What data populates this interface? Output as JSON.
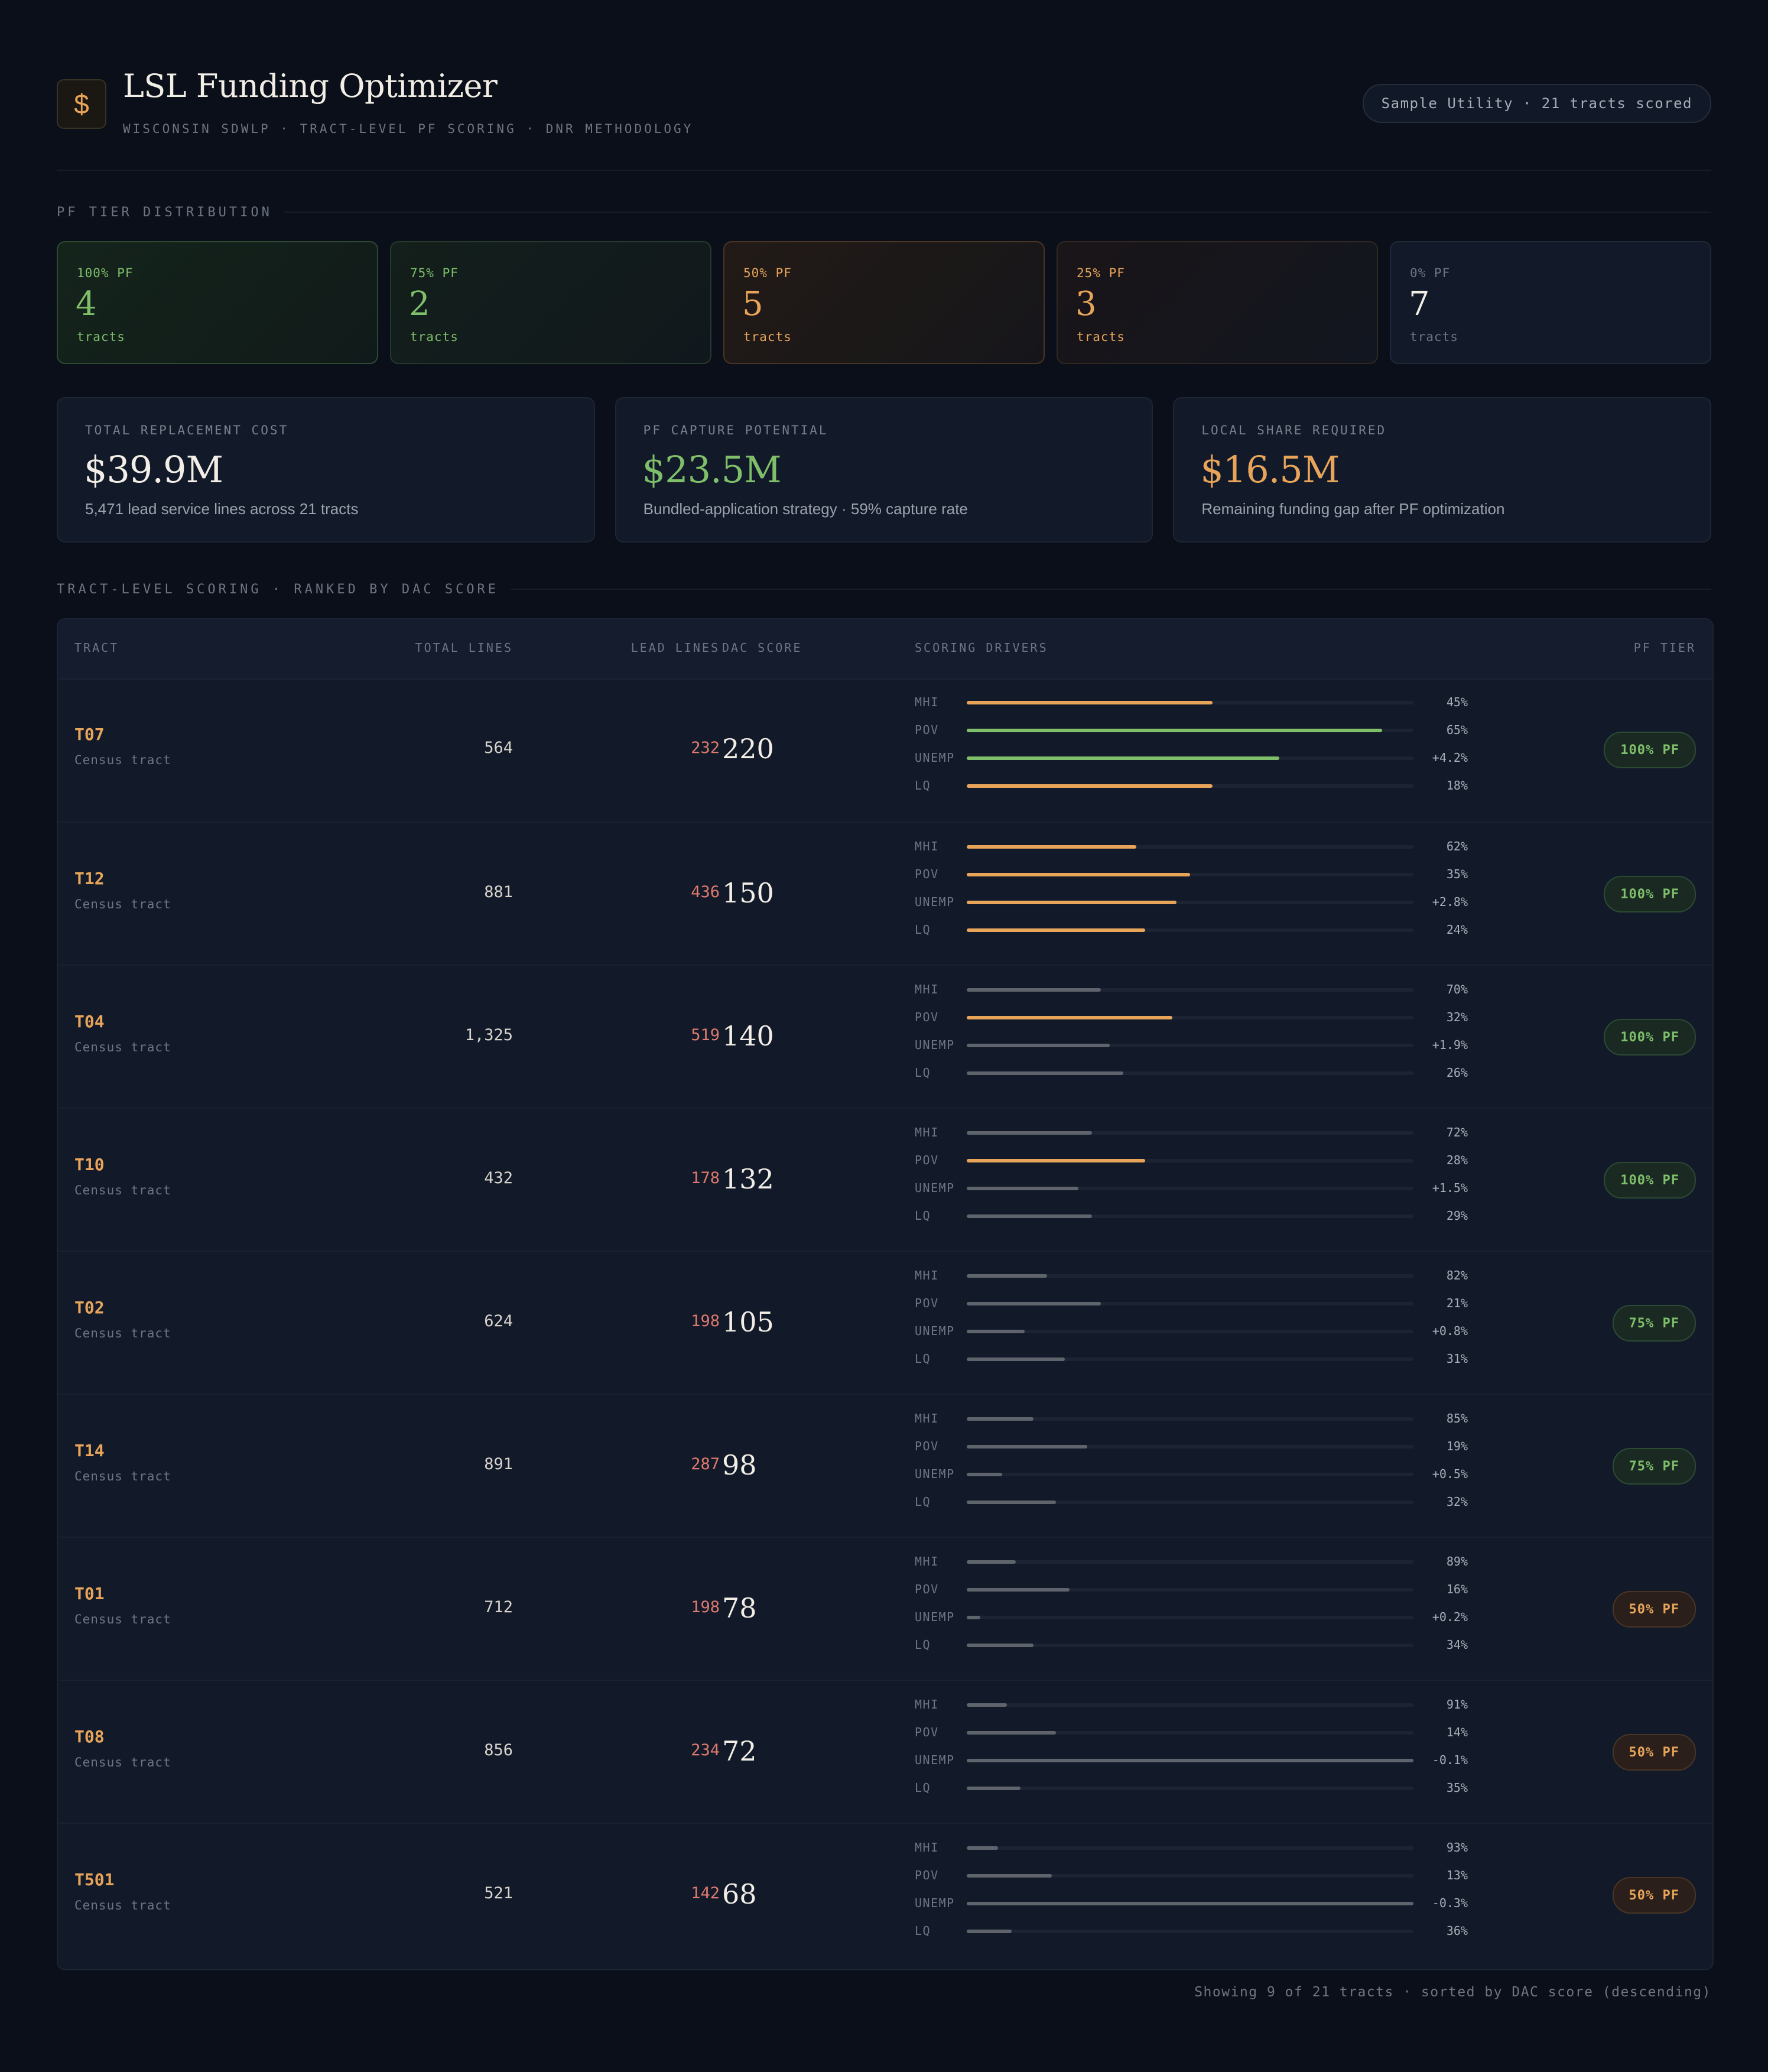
{
  "header": {
    "logo_glyph": "$",
    "title": "LSL Funding Optimizer",
    "subtitle": "WISCONSIN SDWLP · TRACT-LEVEL PF SCORING · DNR METHODOLOGY",
    "badge": "Sample Utility · 21 tracts scored"
  },
  "tier_section": {
    "label": "PF TIER DISTRIBUTION"
  },
  "tiers": [
    {
      "label": "100% PF",
      "count": "4",
      "unit": "tracts"
    },
    {
      "label": "75% PF",
      "count": "2",
      "unit": "tracts"
    },
    {
      "label": "50% PF",
      "count": "5",
      "unit": "tracts"
    },
    {
      "label": "25% PF",
      "count": "3",
      "unit": "tracts"
    },
    {
      "label": "0% PF",
      "count": "7",
      "unit": "tracts"
    }
  ],
  "metrics": [
    {
      "label": "TOTAL REPLACEMENT COST",
      "value": "$39.9M",
      "desc": "5,471 lead service lines across 21 tracts",
      "color": "#f2eee6"
    },
    {
      "label": "PF CAPTURE POTENTIAL",
      "value": "$23.5M",
      "desc": "Bundled-application strategy · 59% capture rate",
      "color": "#7fbf6a"
    },
    {
      "label": "LOCAL SHARE REQUIRED",
      "value": "$16.5M",
      "desc": "Remaining funding gap after PF optimization",
      "color": "#e8a55a"
    }
  ],
  "table_section": {
    "label": "TRACT-LEVEL SCORING · RANKED BY DAC SCORE"
  },
  "table": {
    "headers": {
      "tract": "TRACT",
      "total": "TOTAL LINES",
      "lead": "LEAD LINES",
      "dac": "DAC SCORE",
      "drivers": "SCORING DRIVERS",
      "tier": "PF TIER"
    },
    "driver_labels": [
      "MHI",
      "POV",
      "UNEMP",
      "LQ"
    ],
    "rows": [
      {
        "tract": "T07",
        "sub": "Census tract",
        "total": "564",
        "lead": "232",
        "dac": "220",
        "drivers": [
          {
            "value": "45%",
            "level": 0.55,
            "tone": "mid"
          },
          {
            "value": "65%",
            "level": 0.93,
            "tone": "good"
          },
          {
            "value": "+4.2%",
            "level": 0.7,
            "tone": "good"
          },
          {
            "value": "18%",
            "level": 0.55,
            "tone": "mid"
          }
        ],
        "tier": "100% PF",
        "tier_tone": "green"
      },
      {
        "tract": "T12",
        "sub": "Census tract",
        "total": "881",
        "lead": "436",
        "dac": "150",
        "drivers": [
          {
            "value": "62%",
            "level": 0.38,
            "tone": "mid"
          },
          {
            "value": "35%",
            "level": 0.5,
            "tone": "mid"
          },
          {
            "value": "+2.8%",
            "level": 0.47,
            "tone": "mid"
          },
          {
            "value": "24%",
            "level": 0.4,
            "tone": "mid"
          }
        ],
        "tier": "100% PF",
        "tier_tone": "green"
      },
      {
        "tract": "T04",
        "sub": "Census tract",
        "total": "1,325",
        "lead": "519",
        "dac": "140",
        "drivers": [
          {
            "value": "70%",
            "level": 0.3,
            "tone": "neutral"
          },
          {
            "value": "32%",
            "level": 0.46,
            "tone": "mid"
          },
          {
            "value": "+1.9%",
            "level": 0.32,
            "tone": "neutral"
          },
          {
            "value": "26%",
            "level": 0.35,
            "tone": "neutral"
          }
        ],
        "tier": "100% PF",
        "tier_tone": "green"
      },
      {
        "tract": "T10",
        "sub": "Census tract",
        "total": "432",
        "lead": "178",
        "dac": "132",
        "drivers": [
          {
            "value": "72%",
            "level": 0.28,
            "tone": "neutral"
          },
          {
            "value": "28%",
            "level": 0.4,
            "tone": "mid"
          },
          {
            "value": "+1.5%",
            "level": 0.25,
            "tone": "neutral"
          },
          {
            "value": "29%",
            "level": 0.28,
            "tone": "neutral"
          }
        ],
        "tier": "100% PF",
        "tier_tone": "green"
      },
      {
        "tract": "T02",
        "sub": "Census tract",
        "total": "624",
        "lead": "198",
        "dac": "105",
        "drivers": [
          {
            "value": "82%",
            "level": 0.18,
            "tone": "neutral"
          },
          {
            "value": "21%",
            "level": 0.3,
            "tone": "neutral"
          },
          {
            "value": "+0.8%",
            "level": 0.13,
            "tone": "neutral"
          },
          {
            "value": "31%",
            "level": 0.22,
            "tone": "neutral"
          }
        ],
        "tier": "75% PF",
        "tier_tone": "green"
      },
      {
        "tract": "T14",
        "sub": "Census tract",
        "total": "891",
        "lead": "287",
        "dac": "98",
        "drivers": [
          {
            "value": "85%",
            "level": 0.15,
            "tone": "neutral"
          },
          {
            "value": "19%",
            "level": 0.27,
            "tone": "neutral"
          },
          {
            "value": "+0.5%",
            "level": 0.08,
            "tone": "neutral"
          },
          {
            "value": "32%",
            "level": 0.2,
            "tone": "neutral"
          }
        ],
        "tier": "75% PF",
        "tier_tone": "green"
      },
      {
        "tract": "T01",
        "sub": "Census tract",
        "total": "712",
        "lead": "198",
        "dac": "78",
        "drivers": [
          {
            "value": "89%",
            "level": 0.11,
            "tone": "neutral"
          },
          {
            "value": "16%",
            "level": 0.23,
            "tone": "neutral"
          },
          {
            "value": "+0.2%",
            "level": 0.03,
            "tone": "neutral"
          },
          {
            "value": "34%",
            "level": 0.15,
            "tone": "neutral"
          }
        ],
        "tier": "50% PF",
        "tier_tone": "amber"
      },
      {
        "tract": "T08",
        "sub": "Census tract",
        "total": "856",
        "lead": "234",
        "dac": "72",
        "drivers": [
          {
            "value": "91%",
            "level": 0.09,
            "tone": "neutral"
          },
          {
            "value": "14%",
            "level": 0.2,
            "tone": "neutral"
          },
          {
            "value": "-0.1%",
            "level": 1.0,
            "tone": "neutral"
          },
          {
            "value": "35%",
            "level": 0.12,
            "tone": "neutral"
          }
        ],
        "tier": "50% PF",
        "tier_tone": "amber"
      },
      {
        "tract": "T501",
        "sub": "Census tract",
        "total": "521",
        "lead": "142",
        "dac": "68",
        "drivers": [
          {
            "value": "93%",
            "level": 0.07,
            "tone": "neutral"
          },
          {
            "value": "13%",
            "level": 0.19,
            "tone": "neutral"
          },
          {
            "value": "-0.3%",
            "level": 1.0,
            "tone": "neutral"
          },
          {
            "value": "36%",
            "level": 0.1,
            "tone": "neutral"
          }
        ],
        "tier": "50% PF",
        "tier_tone": "amber"
      }
    ]
  },
  "footer": "Showing 9 of 21 tracts · sorted by DAC score (descending)"
}
